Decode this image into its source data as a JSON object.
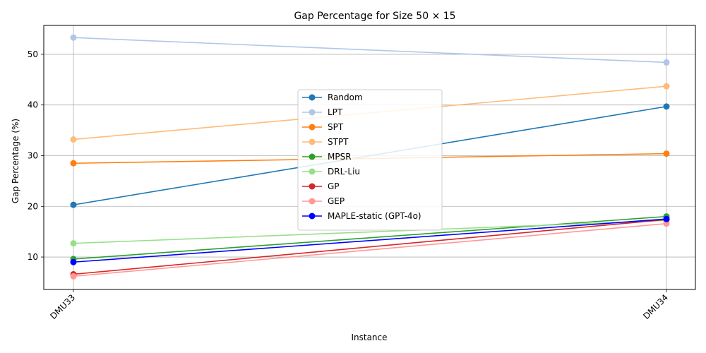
{
  "chart_data": {
    "type": "line",
    "title": "Gap Percentage for Size 50 × 15",
    "xlabel": "Instance",
    "ylabel": "Gap Percentage (%)",
    "categories": [
      "DMU33",
      "DMU34"
    ],
    "ylim": [
      3.6,
      55.7
    ],
    "yticks": [
      10,
      20,
      30,
      40,
      50
    ],
    "grid": true,
    "legend_position": "center",
    "series": [
      {
        "name": "Random",
        "color": "#1f77b4",
        "values": [
          20.3,
          39.7
        ]
      },
      {
        "name": "LPT",
        "color": "#aec7e8",
        "values": [
          53.3,
          48.4
        ]
      },
      {
        "name": "SPT",
        "color": "#ff7f0e",
        "values": [
          28.5,
          30.4
        ]
      },
      {
        "name": "STPT",
        "color": "#ffbb78",
        "values": [
          33.2,
          43.7
        ]
      },
      {
        "name": "MPSR",
        "color": "#2ca02c",
        "values": [
          9.6,
          18.0
        ]
      },
      {
        "name": "DRL-Liu",
        "color": "#98df8a",
        "values": [
          12.7,
          17.2
        ]
      },
      {
        "name": "GP",
        "color": "#d62728",
        "values": [
          6.6,
          17.4
        ]
      },
      {
        "name": "GEP",
        "color": "#ff9896",
        "values": [
          6.2,
          16.6
        ]
      },
      {
        "name": "MAPLE-static (GPT-4o)",
        "color": "#0000ff",
        "values": [
          9.0,
          17.5
        ]
      }
    ]
  }
}
